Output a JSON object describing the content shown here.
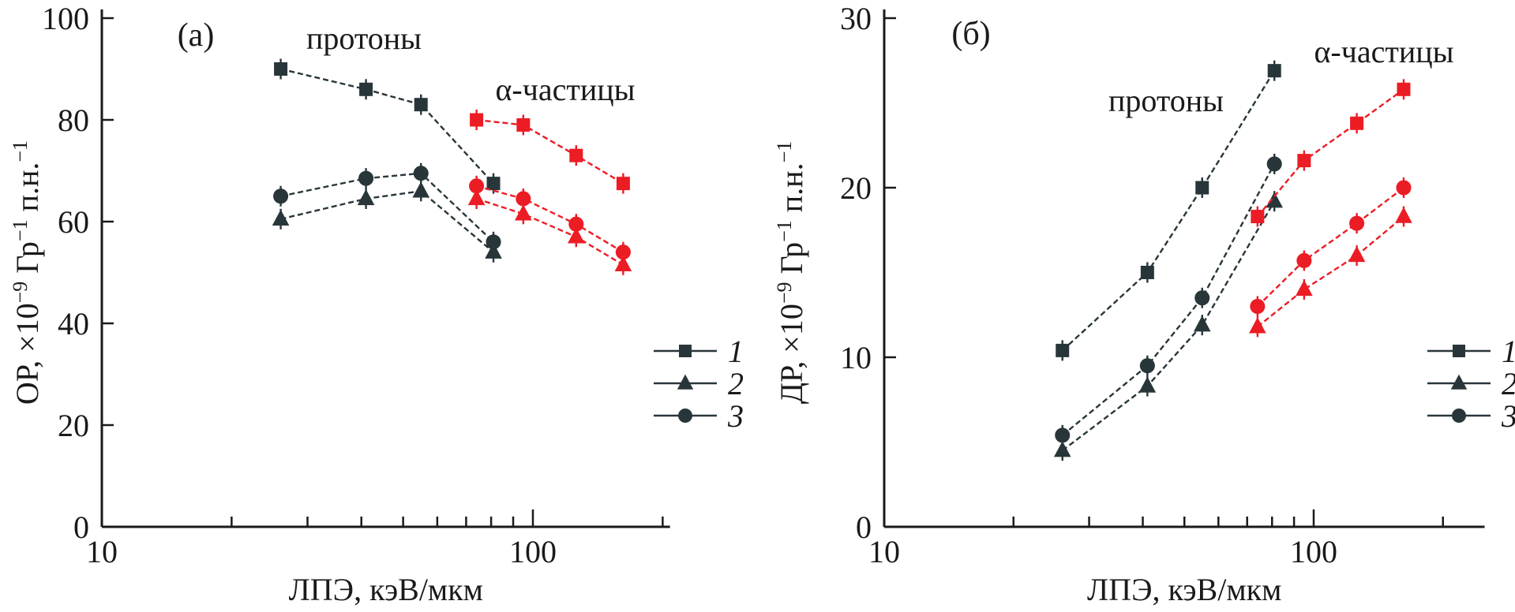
{
  "figure": {
    "background": "#ffffff",
    "colors": {
      "protons": "#28363a",
      "alphas": "#ec1c24",
      "axis": "#1a1a1a"
    },
    "legend_items": [
      {
        "label": "1",
        "marker": "square"
      },
      {
        "label": "2",
        "marker": "triangle"
      },
      {
        "label": "3",
        "marker": "circle"
      }
    ]
  },
  "chart_data": [
    {
      "panel": "(а)",
      "type": "line",
      "x_axis": {
        "label": "ЛПЭ, кэВ/мкм",
        "scale": "log",
        "range": [
          10,
          208
        ],
        "labeled_ticks": [
          10,
          100
        ],
        "tick_labels": [
          "10",
          "100"
        ],
        "minor_ticks": [
          20,
          30,
          40,
          50,
          60,
          70,
          80,
          90,
          200
        ]
      },
      "y_axis": {
        "label": "ОР, ×10⁻⁹ Гр⁻¹ п.н.⁻¹",
        "label_parts": [
          {
            "t": "ОР, ×10"
          },
          {
            "t": "−9",
            "sup": true
          },
          {
            "t": " Гр"
          },
          {
            "t": "−1",
            "sup": true
          },
          {
            "t": " п.н."
          },
          {
            "t": "−1",
            "sup": true
          }
        ],
        "range": [
          0,
          100
        ],
        "ticks": [
          0,
          20,
          40,
          60,
          80,
          100
        ]
      },
      "annotations": {
        "protons": "протоны",
        "alphas": "α-частицы"
      },
      "groups": [
        {
          "name": "протоны",
          "color_key": "protons",
          "x": [
            26,
            41,
            55,
            81
          ],
          "series": [
            {
              "legend": "1",
              "marker": "square",
              "y": [
                90,
                86,
                83,
                67.5
              ]
            },
            {
              "legend": "2",
              "marker": "triangle",
              "y": [
                60.5,
                64.5,
                66,
                54
              ]
            },
            {
              "legend": "3",
              "marker": "circle",
              "y": [
                65,
                68.5,
                69.5,
                56
              ]
            }
          ]
        },
        {
          "name": "α-частицы",
          "color_key": "alphas",
          "x": [
            74,
            95,
            126,
            162
          ],
          "series": [
            {
              "legend": "1",
              "marker": "square",
              "y": [
                80,
                79,
                73,
                67.5
              ]
            },
            {
              "legend": "2",
              "marker": "triangle",
              "y": [
                64.5,
                61.5,
                57,
                51.5
              ]
            },
            {
              "legend": "3",
              "marker": "circle",
              "y": [
                67,
                64.5,
                59.5,
                54
              ]
            }
          ]
        }
      ]
    },
    {
      "panel": "(б)",
      "type": "line",
      "x_axis": {
        "label": "ЛПЭ, кэВ/мкм",
        "scale": "log",
        "range": [
          10,
          250
        ],
        "labeled_ticks": [
          10,
          100
        ],
        "tick_labels": [
          "10",
          "100"
        ],
        "minor_ticks": [
          20,
          30,
          40,
          50,
          60,
          70,
          80,
          90,
          200
        ]
      },
      "y_axis": {
        "label": "ДР, ×10⁻⁹ Гр⁻¹ п.н.⁻¹",
        "label_parts": [
          {
            "t": "ДР, ×10"
          },
          {
            "t": "−9",
            "sup": true
          },
          {
            "t": " Гр"
          },
          {
            "t": "−1",
            "sup": true
          },
          {
            "t": " п.н."
          },
          {
            "t": "−1",
            "sup": true
          }
        ],
        "range": [
          0,
          30
        ],
        "ticks": [
          0,
          10,
          20,
          30
        ]
      },
      "annotations": {
        "protons": "протоны",
        "alphas": "α-частицы"
      },
      "groups": [
        {
          "name": "протоны",
          "color_key": "protons",
          "x": [
            26,
            41,
            55,
            81
          ],
          "series": [
            {
              "legend": "1",
              "marker": "square",
              "y": [
                10.4,
                15,
                20,
                26.9
              ]
            },
            {
              "legend": "2",
              "marker": "triangle",
              "y": [
                4.5,
                8.3,
                11.9,
                19.2
              ]
            },
            {
              "legend": "3",
              "marker": "circle",
              "y": [
                5.4,
                9.5,
                13.5,
                21.4
              ]
            }
          ]
        },
        {
          "name": "α-частицы",
          "color_key": "alphas",
          "x": [
            74,
            95,
            126,
            162
          ],
          "series": [
            {
              "legend": "1",
              "marker": "square",
              "y": [
                18.3,
                21.6,
                23.8,
                25.8
              ]
            },
            {
              "legend": "2",
              "marker": "triangle",
              "y": [
                11.8,
                14,
                16,
                18.3
              ]
            },
            {
              "legend": "3",
              "marker": "circle",
              "y": [
                13,
                15.7,
                17.9,
                20
              ]
            }
          ]
        }
      ]
    }
  ]
}
